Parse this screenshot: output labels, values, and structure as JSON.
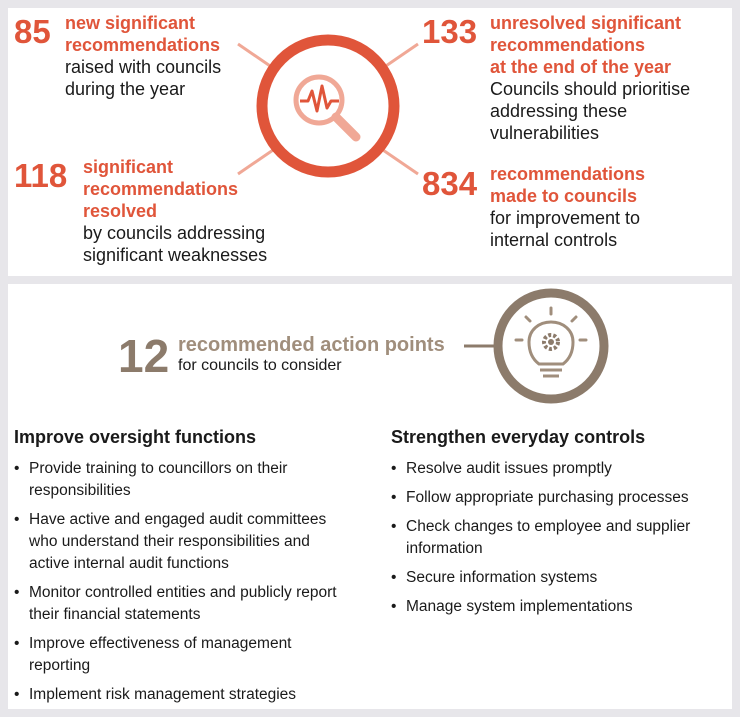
{
  "stats": [
    {
      "number": "85",
      "highlight": [
        "new significant",
        "recommendations"
      ],
      "description": [
        "raised with councils",
        "during the year"
      ]
    },
    {
      "number": "118",
      "highlight": [
        "significant",
        "recommendations",
        "resolved"
      ],
      "description": [
        "by councils addressing",
        "significant weaknesses"
      ]
    },
    {
      "number": "133",
      "highlight": [
        "unresolved significant",
        "recommendations",
        "at the end of the year"
      ],
      "description": [
        "Councils should prioritise",
        "addressing these",
        "vulnerabilities"
      ]
    },
    {
      "number": "834",
      "highlight": [
        "recommendations",
        "made to councils"
      ],
      "description": [
        "for improvement to",
        "internal controls"
      ]
    }
  ],
  "action": {
    "number": "12",
    "highlight": "recommended action points",
    "description": "for councils to consider"
  },
  "columns": [
    {
      "title": "Improve oversight functions",
      "items": [
        "Provide training to councillors on their responsibilities",
        "Have active and engaged audit committees who understand their responsibilities and active internal audit functions",
        "Monitor controlled entities and publicly report their financial statements",
        "Improve effectiveness of management reporting",
        "Implement risk management strategies"
      ]
    },
    {
      "title": "Strengthen everyday controls",
      "items": [
        "Resolve audit issues promptly",
        "Follow appropriate purchasing processes",
        "Check changes to employee and supplier information",
        "Secure information systems",
        "Manage system implementations"
      ]
    }
  ],
  "colors": {
    "accent": "#e0553a",
    "accent_light": "#f0a896",
    "brown": "#8c7b6b",
    "brown_light": "#a08e7c"
  },
  "icons": [
    "magnifier-pulse-icon",
    "lightbulb-gear-icon"
  ]
}
